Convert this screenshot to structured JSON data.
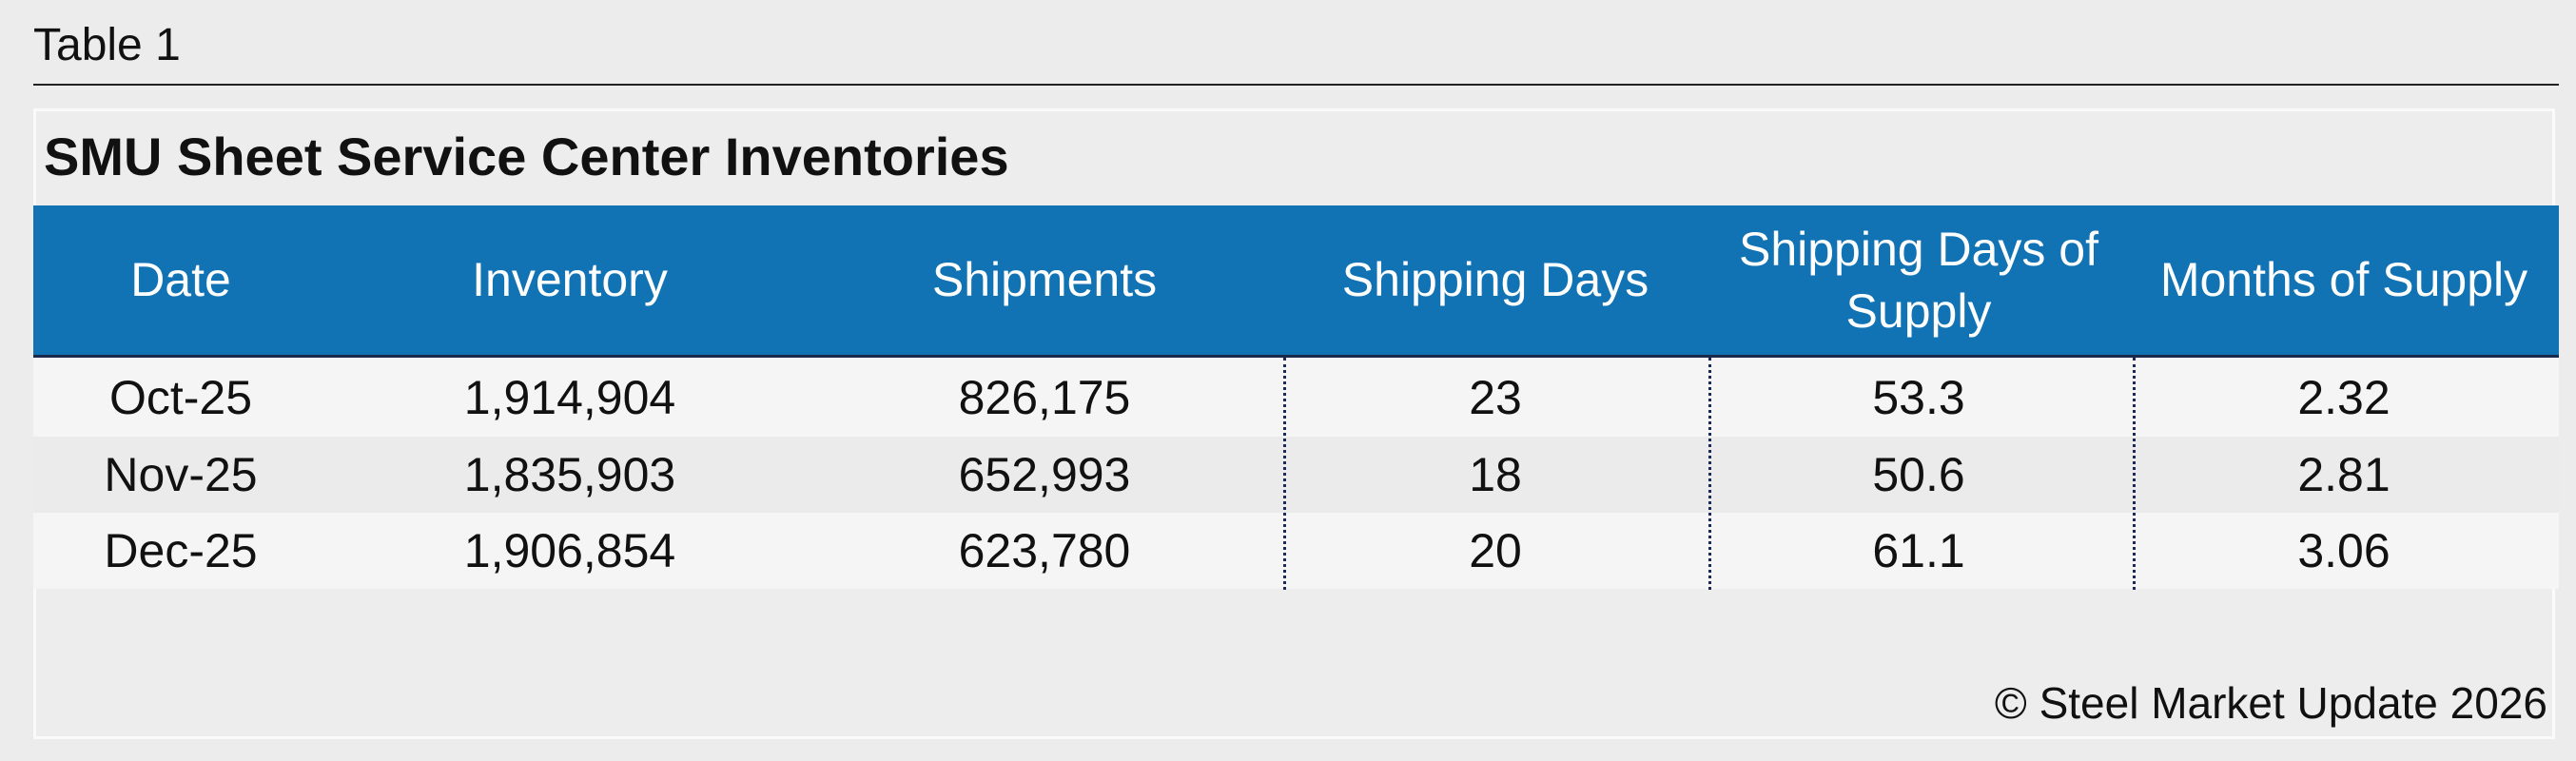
{
  "label": "Table 1",
  "title": "SMU Sheet Service Center Inventories",
  "table": {
    "header": [
      "Date",
      "Inventory",
      "Shipments",
      "Shipping Days",
      "Shipping Days of Supply",
      "Months of Supply"
    ],
    "rows": [
      [
        "Oct-25",
        "1,914,904",
        "826,175",
        "23",
        "53.3",
        "2.32"
      ],
      [
        "Nov-25",
        "1,835,903",
        "652,993",
        "18",
        "50.6",
        "2.81"
      ],
      [
        "Dec-25",
        "1,906,854",
        "623,780",
        "20",
        "61.1",
        "3.06"
      ]
    ]
  },
  "footer": "© Steel Market Update 2026"
}
